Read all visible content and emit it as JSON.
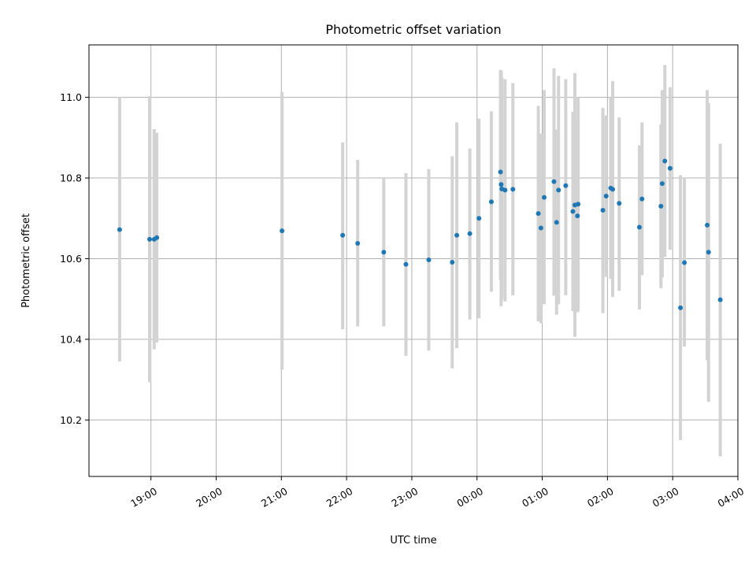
{
  "chart_data": {
    "type": "scatter",
    "title": "Photometric offset variation",
    "xlabel": "UTC time",
    "ylabel": "Photometric offset",
    "x_axis": "time (hours since 00:00 UTC; negative = previous evening)",
    "xlim": [
      -5.95,
      4.0
    ],
    "ylim": [
      10.06,
      11.13
    ],
    "grid": true,
    "colors": {
      "point": "#1f77b4",
      "errorbar": "#d3d3d3"
    },
    "x_ticks": [
      {
        "value": -5.0,
        "label": "19:00"
      },
      {
        "value": -4.0,
        "label": "20:00"
      },
      {
        "value": -3.0,
        "label": "21:00"
      },
      {
        "value": -2.0,
        "label": "22:00"
      },
      {
        "value": -1.0,
        "label": "23:00"
      },
      {
        "value": 0.0,
        "label": "00:00"
      },
      {
        "value": 1.0,
        "label": "01:00"
      },
      {
        "value": 2.0,
        "label": "02:00"
      },
      {
        "value": 3.0,
        "label": "03:00"
      },
      {
        "value": 4.0,
        "label": "04:00"
      }
    ],
    "y_ticks": [
      {
        "value": 10.2,
        "label": "10.2"
      },
      {
        "value": 10.4,
        "label": "10.4"
      },
      {
        "value": 10.6,
        "label": "10.6"
      },
      {
        "value": 10.8,
        "label": "10.8"
      },
      {
        "value": 11.0,
        "label": "11.0"
      }
    ],
    "points": [
      {
        "x": -5.48,
        "y": 10.672,
        "lo": 10.345,
        "hi": 11.0
      },
      {
        "x": -5.02,
        "y": 10.648,
        "lo": 10.293,
        "hi": 11.003
      },
      {
        "x": -4.95,
        "y": 10.648,
        "lo": 10.375,
        "hi": 10.921
      },
      {
        "x": -4.91,
        "y": 10.652,
        "lo": 10.392,
        "hi": 10.912
      },
      {
        "x": -2.99,
        "y": 10.669,
        "lo": 10.325,
        "hi": 11.013
      },
      {
        "x": -2.06,
        "y": 10.658,
        "lo": 10.425,
        "hi": 10.888
      },
      {
        "x": -1.83,
        "y": 10.638,
        "lo": 10.432,
        "hi": 10.845
      },
      {
        "x": -1.43,
        "y": 10.616,
        "lo": 10.432,
        "hi": 10.8
      },
      {
        "x": -1.09,
        "y": 10.586,
        "lo": 10.359,
        "hi": 10.812
      },
      {
        "x": -0.74,
        "y": 10.597,
        "lo": 10.372,
        "hi": 10.822
      },
      {
        "x": -0.38,
        "y": 10.591,
        "lo": 10.328,
        "hi": 10.854
      },
      {
        "x": -0.31,
        "y": 10.658,
        "lo": 10.378,
        "hi": 10.938
      },
      {
        "x": -0.11,
        "y": 10.662,
        "lo": 10.449,
        "hi": 10.873
      },
      {
        "x": 0.03,
        "y": 10.7,
        "lo": 10.452,
        "hi": 10.947
      },
      {
        "x": 0.22,
        "y": 10.741,
        "lo": 10.518,
        "hi": 10.965
      },
      {
        "x": 0.36,
        "y": 10.815,
        "lo": 10.547,
        "hi": 11.068
      },
      {
        "x": 0.37,
        "y": 10.784,
        "lo": 10.482,
        "hi": 11.066
      },
      {
        "x": 0.38,
        "y": 10.773,
        "lo": 10.5,
        "hi": 11.05
      },
      {
        "x": 0.43,
        "y": 10.77,
        "lo": 10.494,
        "hi": 11.045
      },
      {
        "x": 0.55,
        "y": 10.772,
        "lo": 10.509,
        "hi": 11.035
      },
      {
        "x": 0.94,
        "y": 10.712,
        "lo": 10.445,
        "hi": 10.979
      },
      {
        "x": 0.98,
        "y": 10.676,
        "lo": 10.44,
        "hi": 10.91
      },
      {
        "x": 1.03,
        "y": 10.752,
        "lo": 10.487,
        "hi": 11.018
      },
      {
        "x": 1.18,
        "y": 10.791,
        "lo": 10.508,
        "hi": 11.072
      },
      {
        "x": 1.22,
        "y": 10.69,
        "lo": 10.461,
        "hi": 10.92
      },
      {
        "x": 1.25,
        "y": 10.77,
        "lo": 10.487,
        "hi": 11.053
      },
      {
        "x": 1.36,
        "y": 10.781,
        "lo": 10.509,
        "hi": 11.045
      },
      {
        "x": 1.47,
        "y": 10.717,
        "lo": 10.47,
        "hi": 10.964
      },
      {
        "x": 1.5,
        "y": 10.733,
        "lo": 10.406,
        "hi": 11.06
      },
      {
        "x": 1.54,
        "y": 10.706,
        "lo": 10.467,
        "hi": 10.942
      },
      {
        "x": 1.55,
        "y": 10.735,
        "lo": 10.47,
        "hi": 11.0
      },
      {
        "x": 1.93,
        "y": 10.72,
        "lo": 10.465,
        "hi": 10.974
      },
      {
        "x": 1.98,
        "y": 10.755,
        "lo": 10.555,
        "hi": 10.955
      },
      {
        "x": 2.05,
        "y": 10.775,
        "lo": 10.55,
        "hi": 11.0
      },
      {
        "x": 2.08,
        "y": 10.772,
        "lo": 10.505,
        "hi": 11.04
      },
      {
        "x": 2.18,
        "y": 10.737,
        "lo": 10.52,
        "hi": 10.95
      },
      {
        "x": 2.49,
        "y": 10.678,
        "lo": 10.474,
        "hi": 10.881
      },
      {
        "x": 2.53,
        "y": 10.748,
        "lo": 10.559,
        "hi": 10.938
      },
      {
        "x": 2.82,
        "y": 10.73,
        "lo": 10.527,
        "hi": 10.933
      },
      {
        "x": 2.84,
        "y": 10.786,
        "lo": 10.553,
        "hi": 11.018
      },
      {
        "x": 2.88,
        "y": 10.842,
        "lo": 10.604,
        "hi": 11.08
      },
      {
        "x": 2.96,
        "y": 10.824,
        "lo": 10.622,
        "hi": 11.025
      },
      {
        "x": 3.12,
        "y": 10.478,
        "lo": 10.15,
        "hi": 10.807
      },
      {
        "x": 3.18,
        "y": 10.59,
        "lo": 10.382,
        "hi": 10.8
      },
      {
        "x": 3.53,
        "y": 10.683,
        "lo": 10.348,
        "hi": 11.018
      },
      {
        "x": 3.55,
        "y": 10.616,
        "lo": 10.245,
        "hi": 10.986
      },
      {
        "x": 3.73,
        "y": 10.498,
        "lo": 10.11,
        "hi": 10.885
      }
    ]
  }
}
